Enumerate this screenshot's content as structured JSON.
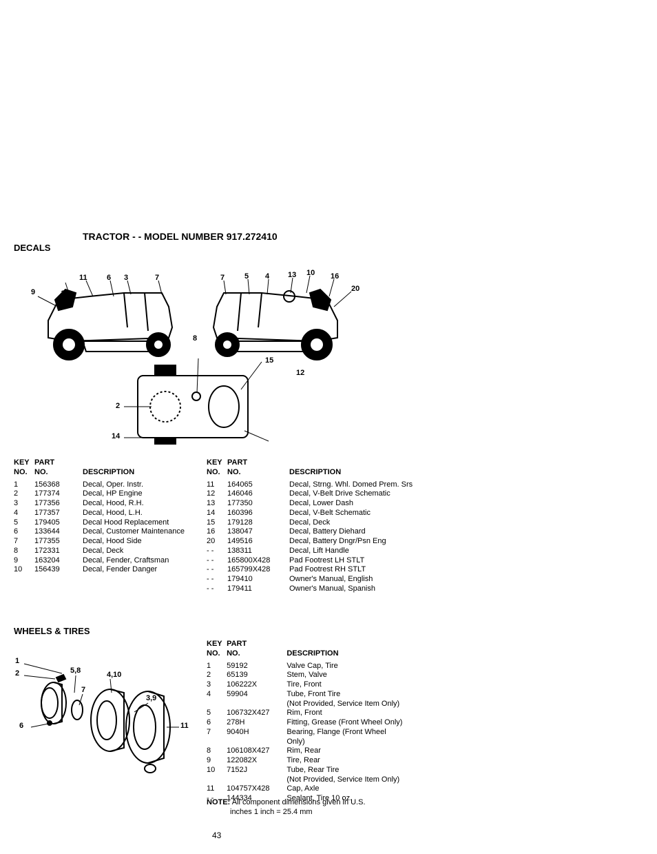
{
  "title": "TRACTOR - - MODEL NUMBER 917.272410",
  "section_decals": "DECALS",
  "section_wheels": "WHEELS & TIRES",
  "page_number": "43",
  "headers": {
    "key1": "KEY",
    "key2": "NO.",
    "part1": "PART",
    "part2": "NO.",
    "desc": "DESCRIPTION"
  },
  "decals_callouts": {
    "c1": "11",
    "c2": "6",
    "c3": "3",
    "c4": "7",
    "c5": "9",
    "c6": "13",
    "c7": "7",
    "c8": "5",
    "c9": "4",
    "c10": "13",
    "c11": "10",
    "c12": "16",
    "c13": "20",
    "c14": "8",
    "c15": "15",
    "c16": "12",
    "c17": "2",
    "c18": "14"
  },
  "decals_left": [
    {
      "k": "1",
      "p": "156368",
      "d": "Decal, Oper. Instr."
    },
    {
      "k": "2",
      "p": "177374",
      "d": "Decal, HP Engine"
    },
    {
      "k": "3",
      "p": "177356",
      "d": "Decal, Hood, R.H."
    },
    {
      "k": "4",
      "p": "177357",
      "d": "Decal, Hood, L.H."
    },
    {
      "k": "5",
      "p": "179405",
      "d": "Decal Hood Replacement"
    },
    {
      "k": "6",
      "p": "133644",
      "d": "Decal, Customer Maintenance"
    },
    {
      "k": "7",
      "p": "177355",
      "d": "Decal, Hood Side"
    },
    {
      "k": "8",
      "p": "172331",
      "d": "Decal, Deck"
    },
    {
      "k": "9",
      "p": "163204",
      "d": "Decal, Fender, Craftsman"
    },
    {
      "k": "10",
      "p": "156439",
      "d": "Decal, Fender Danger"
    }
  ],
  "decals_right": [
    {
      "k": "11",
      "p": "164065",
      "d": "Decal, Strng. Whl. Domed Prem. Srs"
    },
    {
      "k": "12",
      "p": "146046",
      "d": "Decal, V-Belt Drive Schematic"
    },
    {
      "k": "13",
      "p": "177350",
      "d": "Decal, Lower Dash"
    },
    {
      "k": "14",
      "p": "160396",
      "d": "Decal, V-Belt Schematic"
    },
    {
      "k": "15",
      "p": "179128",
      "d": "Decal, Deck"
    },
    {
      "k": "16",
      "p": "138047",
      "d": "Decal, Battery Diehard"
    },
    {
      "k": "20",
      "p": "149516",
      "d": "Decal, Battery Dngr/Psn Eng"
    },
    {
      "k": "- -",
      "p": "138311",
      "d": "Decal, Lift Handle"
    },
    {
      "k": "- -",
      "p": "165800X428",
      "d": "Pad Footrest LH STLT"
    },
    {
      "k": "- -",
      "p": "165799X428",
      "d": "Pad Footrest RH STLT"
    },
    {
      "k": "- -",
      "p": "179410",
      "d": "Owner's Manual, English"
    },
    {
      "k": "- -",
      "p": "179411",
      "d": "Owner's Manual, Spanish"
    }
  ],
  "wheels_callouts": {
    "w1": "1",
    "w2": "2",
    "w3": "5,8",
    "w4": "4,10",
    "w5": "7",
    "w6": "3,9",
    "w7": "6",
    "w8": "11"
  },
  "wheels": [
    {
      "k": "1",
      "p": "59192",
      "d": "Valve Cap, Tire"
    },
    {
      "k": "2",
      "p": "65139",
      "d": "Stem, Valve"
    },
    {
      "k": "3",
      "p": "106222X",
      "d": "Tire, Front"
    },
    {
      "k": "4",
      "p": "59904",
      "d": "Tube, Front Tire"
    },
    {
      "k": "",
      "p": "",
      "d": "(Not Provided, Service Item Only)"
    },
    {
      "k": "5",
      "p": "106732X427",
      "d": "Rim, Front"
    },
    {
      "k": "6",
      "p": "278H",
      "d": "Fitting, Grease (Front Wheel Only)"
    },
    {
      "k": "7",
      "p": "9040H",
      "d": "Bearing, Flange (Front Wheel"
    },
    {
      "k": "",
      "p": "",
      "d": "Only)"
    },
    {
      "k": "8",
      "p": "106108X427",
      "d": "Rim, Rear"
    },
    {
      "k": "9",
      "p": "122082X",
      "d": "Tire, Rear"
    },
    {
      "k": "10",
      "p": "7152J",
      "d": "Tube, Rear Tire"
    },
    {
      "k": "",
      "p": "",
      "d": "(Not Provided, Service Item Only)"
    },
    {
      "k": "11",
      "p": "104757X428",
      "d": "Cap, Axle"
    },
    {
      "k": "- -",
      "p": "144334",
      "d": "Sealant, Tire 10 oz."
    }
  ],
  "note_label": "NOTE:",
  "note_text1": "All component dimensions given in U.S.",
  "note_text2": "inches 1 inch = 25.4 mm"
}
